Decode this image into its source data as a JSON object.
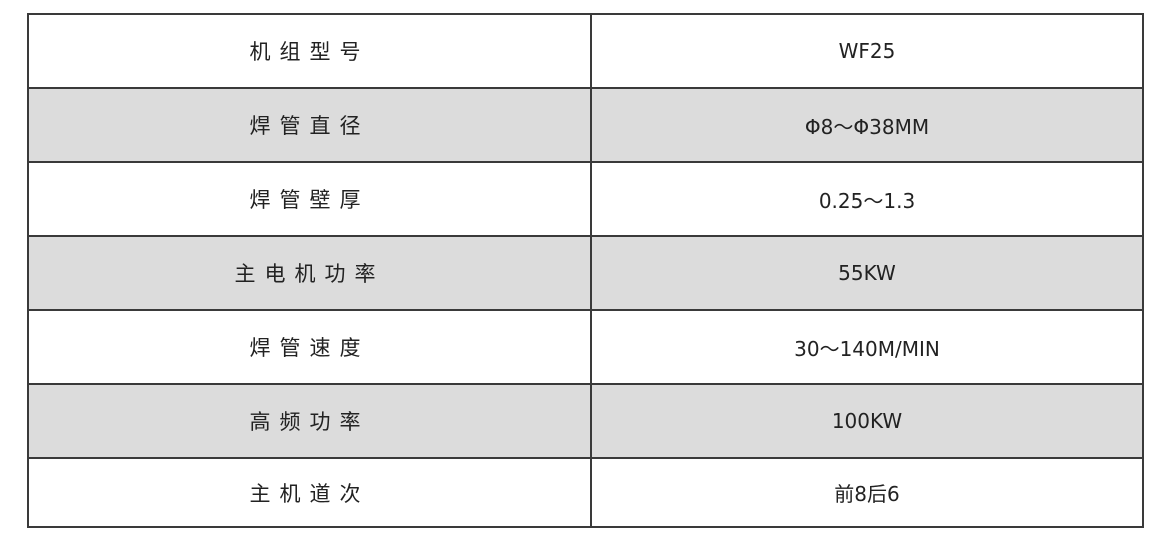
{
  "colors": {
    "stripe": "#dcdcdc",
    "border": "#3a3a3a"
  },
  "rows": [
    {
      "label": "机组型号",
      "value": "WF25"
    },
    {
      "label": "焊管直径",
      "value": "Φ8～Φ38MM"
    },
    {
      "label": "焊管壁厚",
      "value": "0.25～1.3"
    },
    {
      "label": "主电机功率",
      "value": "55KW"
    },
    {
      "label": "焊管速度",
      "value": "30～140M/MIN"
    },
    {
      "label": "高频功率",
      "value": "100KW"
    },
    {
      "label": "主机道次",
      "value": "前8后6"
    }
  ]
}
